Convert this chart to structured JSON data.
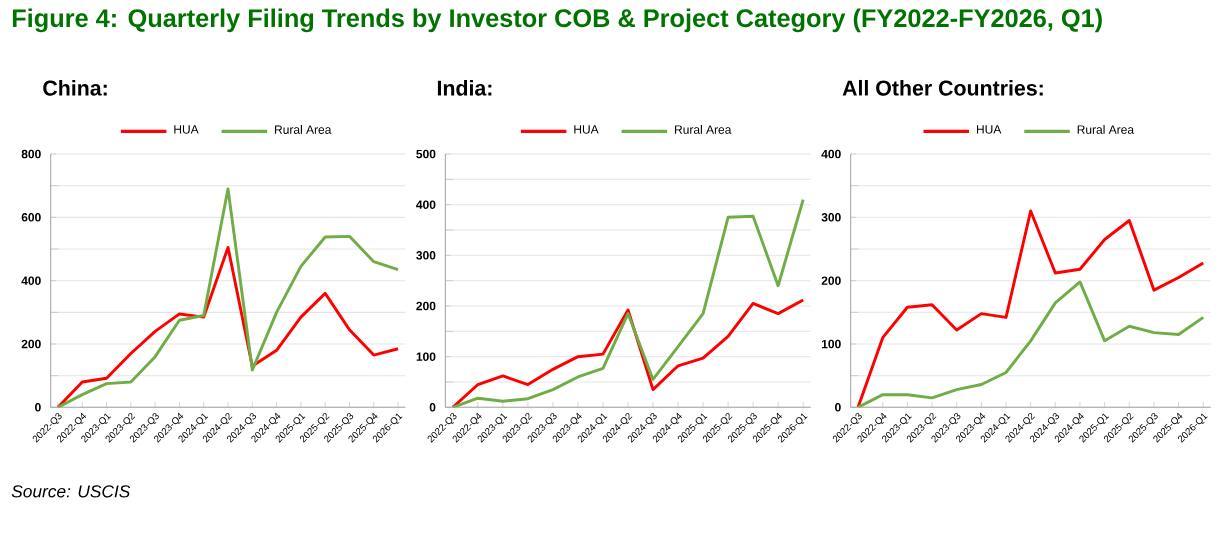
{
  "chart_data": [
    {
      "type": "line",
      "title": "Figure 4: Quarterly Filing Trends by Investor COB & Project Category (FY2022-FY2026, Q1)",
      "subtitle": "China:",
      "annotations": [
        "Source: USCIS"
      ],
      "categories": [
        "2022-Q3",
        "2022-Q4",
        "2023-Q1",
        "2023-Q2",
        "2023-Q3",
        "2023-Q4",
        "2024-Q1",
        "2024-Q2",
        "2024-Q3",
        "2024-Q4",
        "2025-Q1",
        "2025-Q2",
        "2025-Q3",
        "2025-Q4",
        "2026-Q1"
      ],
      "series": [
        {
          "name": "HUA",
          "color": "#ff0000",
          "values": [
            0,
            80,
            92,
            170,
            240,
            295,
            285,
            505,
            130,
            180,
            285,
            360,
            245,
            165,
            185
          ]
        },
        {
          "name": "Rural Area",
          "color": "#70ad47",
          "values": [
            0,
            40,
            75,
            80,
            160,
            275,
            290,
            690,
            118,
            300,
            445,
            538,
            540,
            460,
            435
          ]
        }
      ],
      "ylim": [
        0,
        800
      ],
      "yticks": [
        0,
        200,
        400,
        600,
        800
      ],
      "grid": "y",
      "legend": "top",
      "marker": "none",
      "line_style": "solid"
    },
    {
      "type": "line",
      "subtitle": "India:",
      "categories": [
        "2022-Q3",
        "2022-Q4",
        "2023-Q1",
        "2023-Q2",
        "2023-Q3",
        "2023-Q4",
        "2024-Q1",
        "2024-Q2",
        "2024-Q3",
        "2024-Q4",
        "2025-Q1",
        "2025-Q2",
        "2025-Q3",
        "2025-Q4",
        "2026-Q1"
      ],
      "series": [
        {
          "name": "HUA",
          "color": "#ff0000",
          "values": [
            0,
            45,
            62,
            45,
            75,
            100,
            105,
            192,
            35,
            82,
            97,
            140,
            205,
            185,
            212
          ]
        },
        {
          "name": "Rural Area",
          "color": "#70ad47",
          "values": [
            0,
            18,
            12,
            17,
            35,
            60,
            77,
            185,
            55,
            120,
            185,
            375,
            377,
            240,
            410
          ]
        }
      ],
      "ylim": [
        0,
        500
      ],
      "yticks": [
        0,
        100,
        200,
        300,
        400,
        500
      ],
      "grid": "y",
      "legend": "top",
      "marker": "none",
      "line_style": "solid"
    },
    {
      "type": "line",
      "subtitle": "All Other Countries:",
      "categories": [
        "2022-Q3",
        "2022-Q4",
        "2023-Q1",
        "2023-Q2",
        "2023-Q3",
        "2023-Q4",
        "2024-Q1",
        "2024-Q2",
        "2024-Q3",
        "2024-Q4",
        "2025-Q1",
        "2025-Q2",
        "2025-Q3",
        "2025-Q4",
        "2026-Q1"
      ],
      "series": [
        {
          "name": "HUA",
          "color": "#ff0000",
          "values": [
            0,
            110,
            158,
            162,
            122,
            148,
            142,
            310,
            212,
            218,
            265,
            295,
            185,
            205,
            228
          ]
        },
        {
          "name": "Rural Area",
          "color": "#70ad47",
          "values": [
            0,
            20,
            20,
            15,
            28,
            36,
            55,
            105,
            165,
            198,
            105,
            128,
            118,
            115,
            142
          ]
        }
      ],
      "ylim": [
        0,
        400
      ],
      "yticks": [
        0,
        100,
        200,
        300,
        400
      ],
      "grid": "y",
      "legend": "top",
      "marker": "none",
      "line_style": "solid"
    }
  ]
}
